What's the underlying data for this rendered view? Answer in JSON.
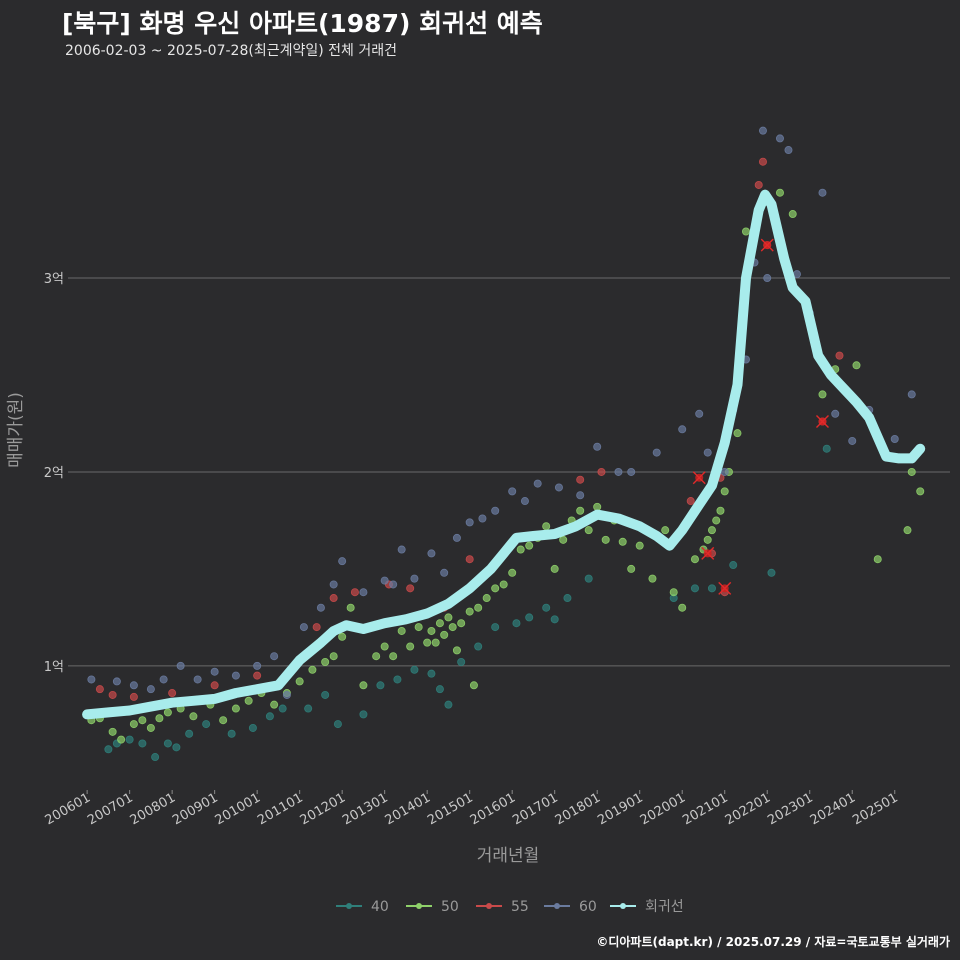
{
  "header": {
    "title": "[북구] 화명 우신 아파트(1987) 회귀선 예측",
    "subtitle": "2006-02-03 ~ 2025-07-28(최근계약일) 전체 거래건"
  },
  "footer": {
    "credit": "©디아파트(dapt.kr) / 2025.07.29 / 자료=국토교통부 실거래가"
  },
  "colors": {
    "background": "#2b2b2d",
    "grid": "#6a6a6a",
    "s40": "#2f7f7a",
    "s50": "#8fd16a",
    "s55": "#c94a4a",
    "s60": "#6a7b9e",
    "regression": "#a8ecec"
  },
  "chart_data": {
    "type": "scatter",
    "xlabel": "거래년월",
    "ylabel": "매매가(원)",
    "x_ticks": [
      "200601",
      "200701",
      "200801",
      "200901",
      "201001",
      "201101",
      "201201",
      "201301",
      "201401",
      "201501",
      "201601",
      "201701",
      "201801",
      "201901",
      "202001",
      "202101",
      "202201",
      "202301",
      "202401",
      "202501"
    ],
    "y_ticks": [
      {
        "value": 1.0,
        "label": "1억"
      },
      {
        "value": 2.0,
        "label": "2억"
      },
      {
        "value": 3.0,
        "label": "3억"
      }
    ],
    "xlim": [
      2005.55,
      2026.3
    ],
    "ylim": [
      0.36,
      3.98
    ],
    "legend_position": "bottom",
    "legend": [
      "40",
      "50",
      "55",
      "60",
      "회귀선"
    ],
    "series": [
      {
        "name": "40",
        "color_key": "s40",
        "points": [
          [
            2006.5,
            0.57
          ],
          [
            2006.7,
            0.6
          ],
          [
            2007.0,
            0.62
          ],
          [
            2007.3,
            0.6
          ],
          [
            2007.6,
            0.53
          ],
          [
            2007.9,
            0.6
          ],
          [
            2008.1,
            0.58
          ],
          [
            2008.4,
            0.65
          ],
          [
            2008.8,
            0.7
          ],
          [
            2009.4,
            0.65
          ],
          [
            2009.9,
            0.68
          ],
          [
            2010.3,
            0.74
          ],
          [
            2010.6,
            0.78
          ],
          [
            2011.2,
            0.78
          ],
          [
            2011.6,
            0.85
          ],
          [
            2011.9,
            0.7
          ],
          [
            2012.5,
            0.75
          ],
          [
            2012.9,
            0.9
          ],
          [
            2013.3,
            0.93
          ],
          [
            2013.7,
            0.98
          ],
          [
            2014.1,
            0.96
          ],
          [
            2014.3,
            0.88
          ],
          [
            2014.5,
            0.8
          ],
          [
            2014.8,
            1.02
          ],
          [
            2015.2,
            1.1
          ],
          [
            2015.6,
            1.2
          ],
          [
            2016.1,
            1.22
          ],
          [
            2016.4,
            1.25
          ],
          [
            2016.8,
            1.3
          ],
          [
            2017.0,
            1.24
          ],
          [
            2017.3,
            1.35
          ],
          [
            2017.8,
            1.45
          ],
          [
            2019.8,
            1.35
          ],
          [
            2020.3,
            1.4
          ],
          [
            2020.7,
            1.4
          ],
          [
            2021.2,
            1.52
          ],
          [
            2022.1,
            1.48
          ],
          [
            2023.4,
            2.12
          ]
        ]
      },
      {
        "name": "50",
        "color_key": "s50",
        "points": [
          [
            2006.1,
            0.72
          ],
          [
            2006.3,
            0.73
          ],
          [
            2006.6,
            0.66
          ],
          [
            2006.8,
            0.62
          ],
          [
            2007.1,
            0.7
          ],
          [
            2007.3,
            0.72
          ],
          [
            2007.5,
            0.68
          ],
          [
            2007.7,
            0.73
          ],
          [
            2007.9,
            0.76
          ],
          [
            2008.2,
            0.78
          ],
          [
            2008.5,
            0.74
          ],
          [
            2008.9,
            0.8
          ],
          [
            2009.2,
            0.72
          ],
          [
            2009.5,
            0.78
          ],
          [
            2009.8,
            0.82
          ],
          [
            2010.1,
            0.86
          ],
          [
            2010.4,
            0.8
          ],
          [
            2010.7,
            0.86
          ],
          [
            2011.0,
            0.92
          ],
          [
            2011.3,
            0.98
          ],
          [
            2011.6,
            1.02
          ],
          [
            2011.8,
            1.05
          ],
          [
            2012.0,
            1.15
          ],
          [
            2012.2,
            1.3
          ],
          [
            2012.5,
            0.9
          ],
          [
            2012.8,
            1.05
          ],
          [
            2013.0,
            1.1
          ],
          [
            2013.2,
            1.05
          ],
          [
            2013.4,
            1.18
          ],
          [
            2013.6,
            1.1
          ],
          [
            2013.8,
            1.2
          ],
          [
            2014.0,
            1.12
          ],
          [
            2014.1,
            1.18
          ],
          [
            2014.2,
            1.12
          ],
          [
            2014.3,
            1.22
          ],
          [
            2014.4,
            1.16
          ],
          [
            2014.5,
            1.25
          ],
          [
            2014.6,
            1.2
          ],
          [
            2014.7,
            1.08
          ],
          [
            2014.8,
            1.22
          ],
          [
            2015.0,
            1.28
          ],
          [
            2015.1,
            0.9
          ],
          [
            2015.2,
            1.3
          ],
          [
            2015.4,
            1.35
          ],
          [
            2015.6,
            1.4
          ],
          [
            2015.8,
            1.42
          ],
          [
            2016.0,
            1.48
          ],
          [
            2016.2,
            1.6
          ],
          [
            2016.4,
            1.62
          ],
          [
            2016.6,
            1.66
          ],
          [
            2016.8,
            1.72
          ],
          [
            2017.0,
            1.5
          ],
          [
            2017.2,
            1.65
          ],
          [
            2017.4,
            1.75
          ],
          [
            2017.6,
            1.8
          ],
          [
            2017.8,
            1.7
          ],
          [
            2018.0,
            1.82
          ],
          [
            2018.2,
            1.65
          ],
          [
            2018.4,
            1.75
          ],
          [
            2018.6,
            1.64
          ],
          [
            2018.8,
            1.5
          ],
          [
            2019.0,
            1.62
          ],
          [
            2019.3,
            1.45
          ],
          [
            2019.6,
            1.7
          ],
          [
            2019.8,
            1.38
          ],
          [
            2020.0,
            1.3
          ],
          [
            2020.3,
            1.55
          ],
          [
            2020.5,
            1.6
          ],
          [
            2020.6,
            1.65
          ],
          [
            2020.7,
            1.7
          ],
          [
            2020.8,
            1.75
          ],
          [
            2020.9,
            1.8
          ],
          [
            2021.0,
            1.9
          ],
          [
            2021.1,
            2.0
          ],
          [
            2021.3,
            2.2
          ],
          [
            2021.5,
            3.24
          ],
          [
            2022.0,
            3.4
          ],
          [
            2022.3,
            3.44
          ],
          [
            2022.6,
            3.33
          ],
          [
            2023.3,
            2.4
          ],
          [
            2023.6,
            2.53
          ],
          [
            2024.1,
            2.55
          ],
          [
            2024.6,
            1.55
          ],
          [
            2025.3,
            1.7
          ],
          [
            2025.4,
            2.0
          ],
          [
            2025.6,
            1.9
          ]
        ]
      },
      {
        "name": "55",
        "color_key": "s55",
        "points": [
          [
            2006.3,
            0.88
          ],
          [
            2006.6,
            0.85
          ],
          [
            2007.1,
            0.84
          ],
          [
            2008.0,
            0.86
          ],
          [
            2009.0,
            0.9
          ],
          [
            2010.0,
            0.95
          ],
          [
            2011.4,
            1.2
          ],
          [
            2011.8,
            1.35
          ],
          [
            2012.3,
            1.38
          ],
          [
            2013.1,
            1.42
          ],
          [
            2013.6,
            1.4
          ],
          [
            2014.4,
            1.3
          ],
          [
            2015.0,
            1.55
          ],
          [
            2017.6,
            1.96
          ],
          [
            2018.1,
            2.0
          ],
          [
            2020.2,
            1.85
          ],
          [
            2020.7,
            1.58
          ],
          [
            2020.9,
            1.97
          ],
          [
            2021.0,
            1.38
          ],
          [
            2021.3,
            2.5
          ],
          [
            2021.8,
            3.48
          ],
          [
            2021.9,
            3.6
          ],
          [
            2022.0,
            3.17
          ],
          [
            2023.3,
            2.26
          ],
          [
            2023.7,
            2.6
          ]
        ]
      },
      {
        "name": "60",
        "color_key": "s60",
        "points": [
          [
            2006.1,
            0.93
          ],
          [
            2006.7,
            0.92
          ],
          [
            2007.1,
            0.9
          ],
          [
            2007.5,
            0.88
          ],
          [
            2007.8,
            0.93
          ],
          [
            2008.2,
            1.0
          ],
          [
            2008.6,
            0.93
          ],
          [
            2009.0,
            0.97
          ],
          [
            2009.5,
            0.95
          ],
          [
            2010.0,
            1.0
          ],
          [
            2010.4,
            1.05
          ],
          [
            2010.7,
            0.85
          ],
          [
            2011.1,
            1.2
          ],
          [
            2011.5,
            1.3
          ],
          [
            2011.8,
            1.42
          ],
          [
            2012.0,
            1.54
          ],
          [
            2012.5,
            1.38
          ],
          [
            2013.0,
            1.44
          ],
          [
            2013.2,
            1.42
          ],
          [
            2013.4,
            1.6
          ],
          [
            2013.7,
            1.45
          ],
          [
            2014.1,
            1.58
          ],
          [
            2014.4,
            1.48
          ],
          [
            2014.7,
            1.66
          ],
          [
            2015.0,
            1.74
          ],
          [
            2015.3,
            1.76
          ],
          [
            2015.6,
            1.8
          ],
          [
            2016.0,
            1.9
          ],
          [
            2016.3,
            1.85
          ],
          [
            2016.6,
            1.94
          ],
          [
            2017.1,
            1.92
          ],
          [
            2017.6,
            1.88
          ],
          [
            2018.0,
            2.13
          ],
          [
            2018.5,
            2.0
          ],
          [
            2018.8,
            2.0
          ],
          [
            2019.4,
            2.1
          ],
          [
            2020.0,
            2.22
          ],
          [
            2020.4,
            2.3
          ],
          [
            2020.6,
            2.1
          ],
          [
            2021.0,
            2.0
          ],
          [
            2021.2,
            2.32
          ],
          [
            2021.5,
            2.58
          ],
          [
            2021.7,
            3.08
          ],
          [
            2021.9,
            3.76
          ],
          [
            2022.0,
            3.0
          ],
          [
            2022.3,
            3.72
          ],
          [
            2022.5,
            3.66
          ],
          [
            2022.7,
            3.02
          ],
          [
            2023.0,
            2.82
          ],
          [
            2023.3,
            3.44
          ],
          [
            2023.6,
            2.3
          ],
          [
            2024.0,
            2.16
          ],
          [
            2024.4,
            2.32
          ],
          [
            2025.0,
            2.17
          ],
          [
            2025.4,
            2.4
          ]
        ]
      }
    ],
    "highlighted_points": [
      [
        2020.4,
        1.97
      ],
      [
        2020.6,
        1.58
      ],
      [
        2021.0,
        1.4
      ],
      [
        2022.0,
        3.17
      ],
      [
        2023.3,
        2.26
      ]
    ],
    "regression": {
      "name": "회귀선",
      "color_key": "regression",
      "points": [
        [
          2006.0,
          0.75
        ],
        [
          2006.5,
          0.76
        ],
        [
          2007.0,
          0.77
        ],
        [
          2007.5,
          0.79
        ],
        [
          2008.0,
          0.81
        ],
        [
          2008.5,
          0.82
        ],
        [
          2009.0,
          0.83
        ],
        [
          2009.5,
          0.86
        ],
        [
          2010.0,
          0.88
        ],
        [
          2010.5,
          0.9
        ],
        [
          2011.0,
          1.03
        ],
        [
          2011.5,
          1.12
        ],
        [
          2011.8,
          1.18
        ],
        [
          2012.1,
          1.21
        ],
        [
          2012.5,
          1.19
        ],
        [
          2013.0,
          1.22
        ],
        [
          2013.5,
          1.24
        ],
        [
          2014.0,
          1.27
        ],
        [
          2014.5,
          1.32
        ],
        [
          2015.0,
          1.4
        ],
        [
          2015.5,
          1.5
        ],
        [
          2015.8,
          1.58
        ],
        [
          2016.1,
          1.66
        ],
        [
          2016.5,
          1.67
        ],
        [
          2017.0,
          1.68
        ],
        [
          2017.5,
          1.72
        ],
        [
          2018.0,
          1.78
        ],
        [
          2018.5,
          1.76
        ],
        [
          2019.0,
          1.72
        ],
        [
          2019.4,
          1.67
        ],
        [
          2019.7,
          1.62
        ],
        [
          2020.0,
          1.7
        ],
        [
          2020.3,
          1.8
        ],
        [
          2020.7,
          1.93
        ],
        [
          2021.0,
          2.15
        ],
        [
          2021.3,
          2.45
        ],
        [
          2021.5,
          3.0
        ],
        [
          2021.8,
          3.35
        ],
        [
          2021.95,
          3.43
        ],
        [
          2022.1,
          3.38
        ],
        [
          2022.4,
          3.1
        ],
        [
          2022.6,
          2.95
        ],
        [
          2022.9,
          2.88
        ],
        [
          2023.2,
          2.6
        ],
        [
          2023.5,
          2.5
        ],
        [
          2023.8,
          2.43
        ],
        [
          2024.1,
          2.36
        ],
        [
          2024.4,
          2.28
        ],
        [
          2024.8,
          2.08
        ],
        [
          2025.1,
          2.07
        ],
        [
          2025.4,
          2.07
        ],
        [
          2025.6,
          2.12
        ]
      ]
    }
  }
}
